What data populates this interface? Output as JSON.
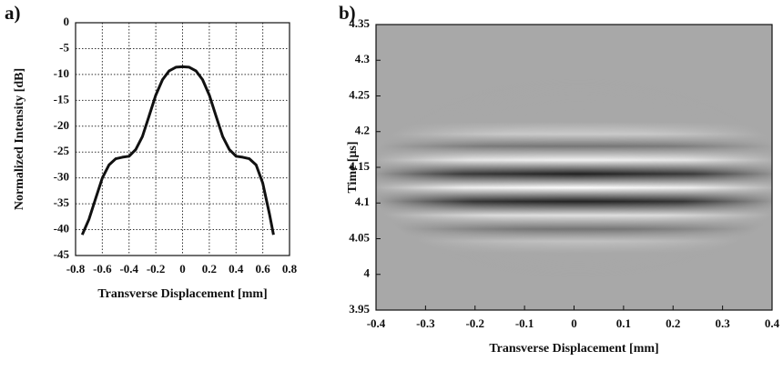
{
  "chart_data": [
    {
      "type": "line",
      "title": "a)",
      "xlabel": "Transverse Displacement [mm]",
      "ylabel": "Normalized Intensity [dB]",
      "x": [
        -0.75,
        -0.7,
        -0.65,
        -0.6,
        -0.55,
        -0.5,
        -0.45,
        -0.4,
        -0.35,
        -0.3,
        -0.25,
        -0.2,
        -0.15,
        -0.1,
        -0.05,
        0,
        0.05,
        0.1,
        0.15,
        0.2,
        0.25,
        0.3,
        0.35,
        0.4,
        0.45,
        0.5,
        0.55,
        0.6,
        0.65,
        0.68
      ],
      "values": [
        -41,
        -38,
        -34,
        -30,
        -27.5,
        -26.3,
        -26,
        -25.8,
        -24.5,
        -22,
        -18,
        -14,
        -11,
        -9.3,
        -8.6,
        -8.5,
        -8.6,
        -9.3,
        -11,
        -14,
        -18,
        -22,
        -24.5,
        -25.8,
        -26,
        -26.3,
        -27.5,
        -31,
        -37,
        -41
      ],
      "color": "#111111",
      "xlim": [
        -0.8,
        0.8
      ],
      "xticks": [
        -0.8,
        -0.6,
        -0.4,
        -0.2,
        0,
        0.2,
        0.4,
        0.6,
        0.8
      ],
      "ylim": [
        -45,
        0
      ],
      "yticks": [
        0,
        -5,
        -10,
        -15,
        -20,
        -25,
        -30,
        -35,
        -40,
        -45
      ],
      "grid": true
    },
    {
      "type": "image",
      "title": "b)",
      "xlabel": "Transverse Displacement [mm]",
      "ylabel": "Time [μs]",
      "xlim": [
        -0.4,
        0.4
      ],
      "xticks": [
        -0.4,
        -0.3,
        -0.2,
        -0.1,
        0,
        0.1,
        0.2,
        0.3,
        0.4
      ],
      "ylim": [
        3.95,
        4.35
      ],
      "yticks": [
        3.95,
        4,
        4.05,
        4.1,
        4.15,
        4.2,
        4.25,
        4.3,
        4.35
      ],
      "grid": false
    }
  ]
}
